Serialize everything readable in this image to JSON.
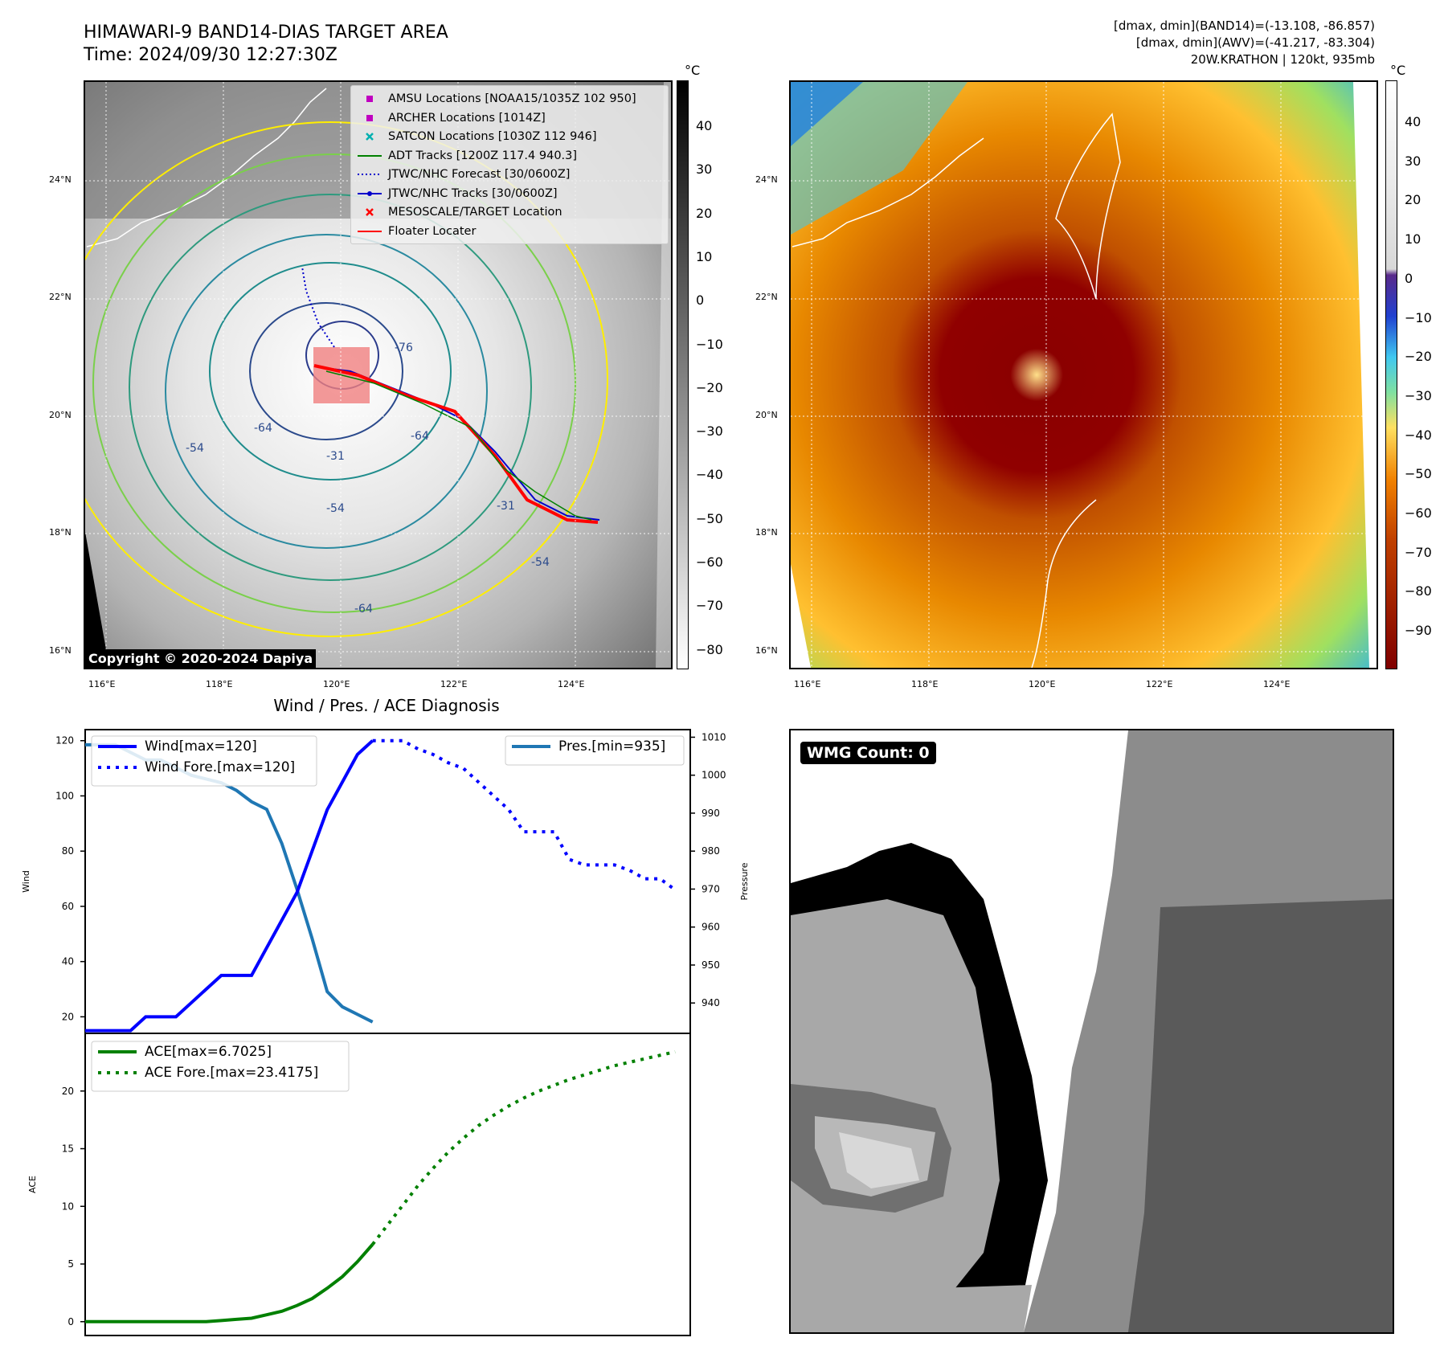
{
  "header": {
    "title_line1": "HIMAWARI-9 BAND14-DIAS TARGET AREA",
    "title_line2": "Time: 2024/09/30 12:27:30Z",
    "info_line1": "[dmax, dmin](BAND14)=(-13.108, -86.857)",
    "info_line2": "[dmax, dmin](AWV)=(-41.217, -83.304)",
    "info_line3": "20W.KRATHON | 120kt, 935mb"
  },
  "map": {
    "lat_labels": [
      "24°N",
      "22°N",
      "20°N",
      "18°N",
      "16°N"
    ],
    "lon_labels": [
      "116°E",
      "118°E",
      "120°E",
      "122°E",
      "124°E"
    ],
    "copyright": "Copyright © 2020-2024 Dapiya",
    "contour_labels": [
      "-76",
      "-64",
      "-64",
      "-54",
      "-54",
      "-64",
      "-31",
      "-54",
      "-31"
    ],
    "legend": [
      {
        "label": "AMSU Locations [NOAA15/1035Z 102 950]",
        "symbol": "square",
        "color": "#c000c0"
      },
      {
        "label": "ARCHER Locations [1014Z]",
        "symbol": "square",
        "color": "#c000c0"
      },
      {
        "label": "SATCON Locations [1030Z 112 946]",
        "symbol": "x",
        "color": "#00b0b0"
      },
      {
        "label": "ADT Tracks [1200Z 117.4 940.3]",
        "symbol": "line",
        "color": "#008000"
      },
      {
        "label": "JTWC/NHC Forecast [30/0600Z]",
        "symbol": "dotted",
        "color": "#0000cc"
      },
      {
        "label": "JTWC/NHC Tracks [30/0600Z]",
        "symbol": "line-dot",
        "color": "#0000cc"
      },
      {
        "label": "MESOSCALE/TARGET Location",
        "symbol": "x",
        "color": "#ff0000"
      },
      {
        "label": "Floater Locater",
        "symbol": "line",
        "color": "#ff0000"
      }
    ]
  },
  "colorbars": {
    "unit": "°C",
    "left_ticks": [
      "40",
      "30",
      "20",
      "10",
      "0",
      "−10",
      "−20",
      "−30",
      "−40",
      "−50",
      "−60",
      "−70",
      "−80"
    ],
    "right_ticks": [
      "40",
      "30",
      "20",
      "10",
      "0",
      "−10",
      "−20",
      "−30",
      "−40",
      "−50",
      "−60",
      "−70",
      "−80",
      "−90"
    ]
  },
  "diagnosis": {
    "title": "Wind / Pres. / ACE Diagnosis",
    "top_ylabel_left": "Wind",
    "top_ylabel_right": "Pressure",
    "bottom_ylabel": "ACE",
    "legend_wind": "Wind[max=120]",
    "legend_wind_fore": "Wind Fore.[max=120]",
    "legend_pres": "Pres.[min=935]",
    "legend_ace": "ACE[max=6.7025]",
    "legend_ace_fore": "ACE Fore.[max=23.4175]"
  },
  "wmg": {
    "label": "WMG Count: 0"
  },
  "chart_data": [
    {
      "type": "line",
      "title": "Wind / Pres. / ACE Diagnosis",
      "ylabel": "Wind",
      "ylim": [
        14,
        124
      ],
      "y_ticks": [
        20,
        40,
        60,
        80,
        100,
        120
      ],
      "xlim": [
        0,
        40
      ],
      "color": "#0000ff",
      "series": [
        {
          "name": "Wind[max=120]",
          "style": "solid",
          "x": [
            0,
            1,
            2,
            3,
            4,
            5,
            6,
            7,
            8,
            9,
            10,
            11,
            12,
            13,
            14,
            15,
            16,
            17,
            18,
            19
          ],
          "values": [
            15,
            15,
            15,
            15,
            20,
            20,
            20,
            25,
            30,
            35,
            35,
            35,
            45,
            55,
            65,
            80,
            95,
            105,
            115,
            120
          ]
        },
        {
          "name": "Wind Fore.[max=120]",
          "style": "dotted",
          "x": [
            19,
            20,
            21,
            22,
            23,
            24,
            25,
            26,
            27,
            28,
            29,
            30,
            31,
            32,
            33,
            34,
            35,
            36,
            37,
            38,
            39
          ],
          "values": [
            120,
            120,
            120,
            117,
            115,
            112,
            110,
            105,
            100,
            95,
            87,
            87,
            87,
            77,
            75,
            75,
            75,
            73,
            70,
            70,
            66
          ]
        }
      ]
    },
    {
      "type": "line",
      "ylabel": "Pressure",
      "ylim": [
        932,
        1012
      ],
      "y_ticks": [
        940,
        950,
        960,
        970,
        980,
        990,
        1000,
        1010
      ],
      "xlim": [
        0,
        40
      ],
      "color": "#1f77b4",
      "series": [
        {
          "name": "Pres.[min=935]",
          "style": "solid",
          "x": [
            0,
            1,
            2,
            3,
            4,
            5,
            6,
            7,
            8,
            9,
            10,
            11,
            12,
            13,
            14,
            15,
            16,
            17,
            18,
            19
          ],
          "values": [
            1008,
            1008,
            1008,
            1006,
            1004,
            1004,
            1002,
            1000,
            999,
            998,
            996,
            993,
            991,
            982,
            970,
            957,
            943,
            939,
            937,
            935
          ]
        }
      ]
    },
    {
      "type": "line",
      "ylabel": "ACE",
      "ylim": [
        -1.2,
        25
      ],
      "y_ticks": [
        0,
        5,
        10,
        15,
        20
      ],
      "xlim": [
        0,
        40
      ],
      "color": "#008000",
      "series": [
        {
          "name": "ACE[max=6.7025]",
          "style": "solid",
          "x": [
            0,
            1,
            2,
            3,
            4,
            5,
            6,
            7,
            8,
            9,
            10,
            11,
            12,
            13,
            14,
            15,
            16,
            17,
            18,
            19
          ],
          "values": [
            0,
            0,
            0,
            0,
            0,
            0,
            0,
            0,
            0,
            0.1,
            0.2,
            0.3,
            0.6,
            0.9,
            1.4,
            2.0,
            2.9,
            3.9,
            5.2,
            6.7
          ]
        },
        {
          "name": "ACE Fore.[max=23.4175]",
          "style": "dotted",
          "x": [
            19,
            20,
            21,
            22,
            23,
            24,
            25,
            26,
            27,
            28,
            29,
            30,
            31,
            32,
            33,
            34,
            35,
            36,
            37,
            38,
            39
          ],
          "values": [
            6.7,
            8.4,
            10.1,
            11.8,
            13.3,
            14.7,
            15.9,
            17.0,
            17.9,
            18.7,
            19.4,
            20.0,
            20.5,
            21.0,
            21.4,
            21.8,
            22.2,
            22.5,
            22.8,
            23.1,
            23.4
          ]
        }
      ]
    }
  ]
}
